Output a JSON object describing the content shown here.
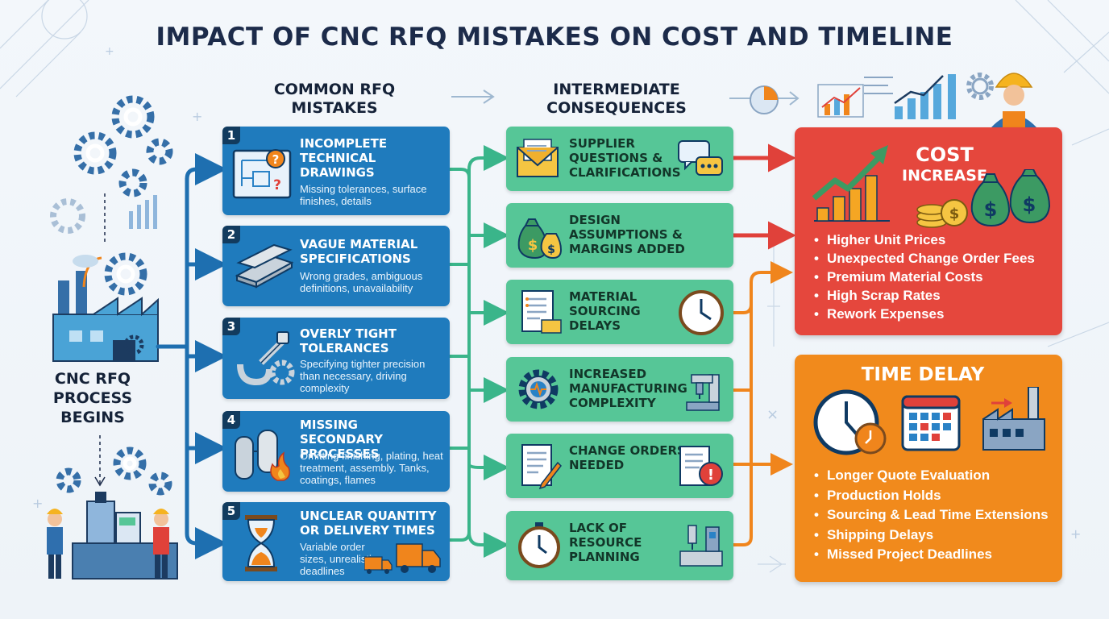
{
  "title": "IMPACT OF CNC RFQ MISTAKES ON COST AND TIMELINE",
  "columns": {
    "mistakes_heading_line1": "COMMON RFQ",
    "mistakes_heading_line2": "MISTAKES",
    "consequences_heading_line1": "INTERMEDIATE",
    "consequences_heading_line2": "CONSEQUENCES"
  },
  "start": {
    "line1": "CNC RFQ",
    "line2": "PROCESS",
    "line3": "BEGINS"
  },
  "mistakes": [
    {
      "number": "1",
      "title": "INCOMPLETE TECHNICAL DRAWINGS",
      "description": "Missing tolerances, surface finishes, details",
      "icon": "blueprint-question-icon"
    },
    {
      "number": "2",
      "title": "VAGUE MATERIAL SPECIFICATIONS",
      "description": "Wrong grades, ambiguous definitions, unavailability",
      "icon": "metal-plates-icon"
    },
    {
      "number": "3",
      "title": "OVERLY TIGHT TOLERANCES",
      "description": "Specifying tighter precision than necessary, driving complexity",
      "icon": "caliper-gear-icon"
    },
    {
      "number": "4",
      "title": "MISSING SECONDARY PROCESSES",
      "description": "Omitting finishing, plating, heat treatment, assembly. Tanks, coatings, flames",
      "icon": "tanks-flame-icon"
    },
    {
      "number": "5",
      "title": "UNCLEAR QUANTITY OR DELIVERY TIMES",
      "description": "Variable order sizes, unrealistic deadlines",
      "icon": "hourglass-truck-icon"
    }
  ],
  "consequences": [
    {
      "title": "SUPPLIER QUESTIONS & CLARIFICATIONS",
      "icon": "envelope-chat-icon"
    },
    {
      "title": "DESIGN ASSUMPTIONS & MARGINS ADDED",
      "icon": "money-bags-icon"
    },
    {
      "title": "MATERIAL SOURCING DELAYS",
      "icon": "document-clock-icon"
    },
    {
      "title": "INCREASED MANUFACTURING COMPLEXITY",
      "icon": "gear-machine-icon"
    },
    {
      "title": "CHANGE ORDERS NEEDED",
      "icon": "document-alert-icon"
    },
    {
      "title": "LACK OF RESOURCE PLANNING",
      "icon": "stopwatch-machine-icon"
    }
  ],
  "cost": {
    "title_line1": "COST",
    "title_line2": "INCREASE",
    "items": [
      "Higher Unit Prices",
      "Unexpected Change Order Fees",
      "Premium Material Costs",
      "High Scrap Rates",
      "Rework Expenses"
    ]
  },
  "time": {
    "title": "TIME DELAY",
    "items": [
      "Longer Quote Evaluation",
      "Production Holds",
      "Sourcing & Lead Time Extensions",
      "Shipping Delays",
      "Missed Project Deadlines"
    ]
  },
  "colors": {
    "title": "#1c2b4a",
    "mistake_card": "#1f7bbd",
    "consequence_card": "#56c697",
    "cost_card": "#e5473d",
    "time_card": "#f18a1c",
    "flow_blue": "#1e6fb0",
    "flow_green": "#3ab58a",
    "flow_red": "#e0413a",
    "flow_orange": "#f0851c"
  }
}
